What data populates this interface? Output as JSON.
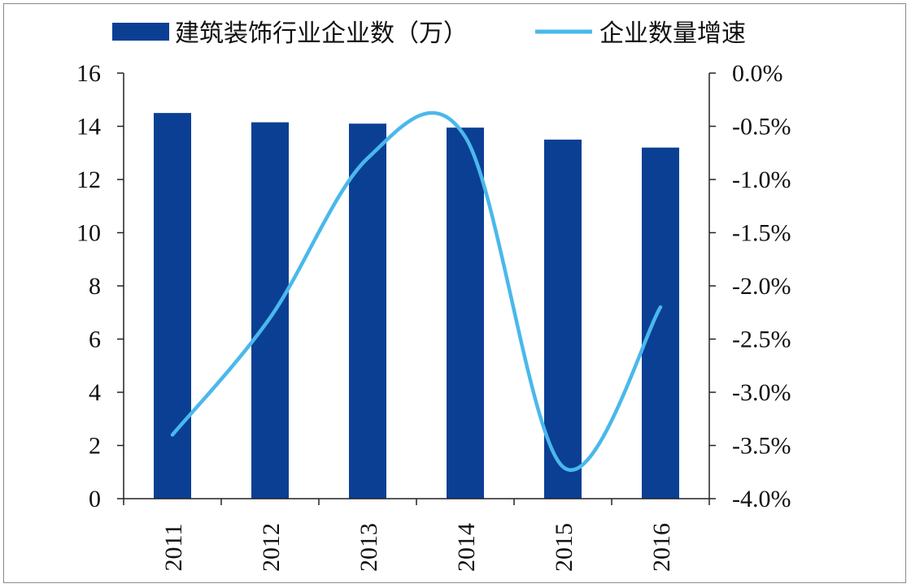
{
  "chart_data": {
    "type": "bar+line",
    "categories": [
      "2011",
      "2012",
      "2013",
      "2014",
      "2015",
      "2016"
    ],
    "series": [
      {
        "name": "建筑装饰行业企业数（万）",
        "type": "bar",
        "axis": "left",
        "values": [
          14.5,
          14.15,
          14.1,
          13.95,
          13.5,
          13.2
        ],
        "color": "#0a3f94"
      },
      {
        "name": "企业数量增速",
        "type": "line",
        "axis": "right",
        "smooth": true,
        "values": [
          -3.4,
          -2.3,
          -0.8,
          -0.6,
          -3.7,
          -2.2
        ],
        "unit": "%",
        "color": "#4ab8ec"
      }
    ],
    "y_left": {
      "min": 0,
      "max": 16,
      "ticks": [
        "0",
        "2",
        "4",
        "6",
        "8",
        "10",
        "12",
        "14",
        "16"
      ]
    },
    "y_right": {
      "min": -4.0,
      "max": 0.0,
      "ticks": [
        "-4.0%",
        "-3.5%",
        "-3.0%",
        "-2.5%",
        "-2.0%",
        "-1.5%",
        "-1.0%",
        "-0.5%",
        "0.0%"
      ]
    },
    "legend_position": "top",
    "grid": false,
    "xlabel_rotation": "vertical"
  }
}
